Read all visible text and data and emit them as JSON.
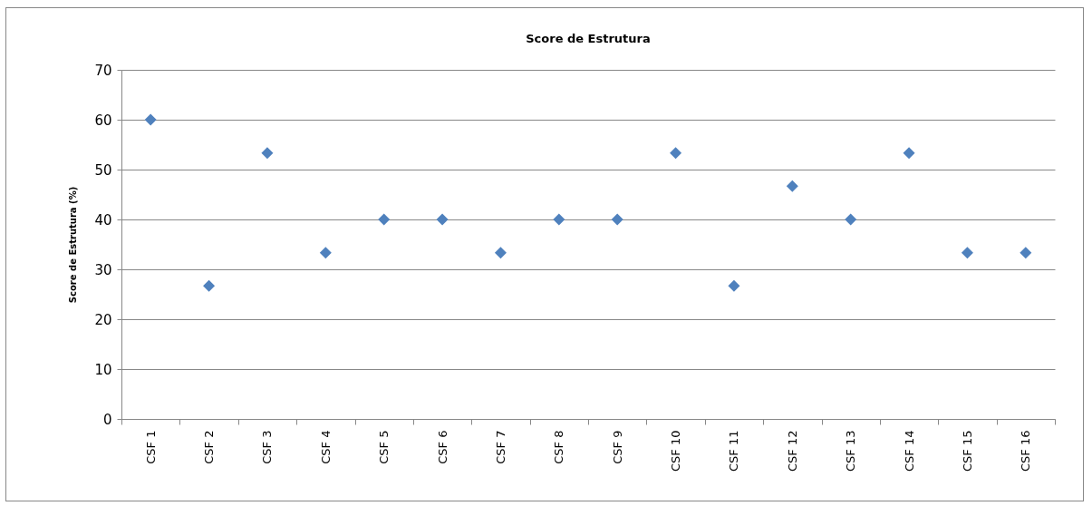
{
  "chart_data": {
    "type": "scatter",
    "title": "Score de Estrutura",
    "ylabel": "Score de Estrutura (%)",
    "categories": [
      "CSF 1",
      "CSF 2",
      "CSF 3",
      "CSF 4",
      "CSF 5",
      "CSF 6",
      "CSF 7",
      "CSF 8",
      "CSF 9",
      "CSF 10",
      "CSF 11",
      "CSF 12",
      "CSF 13",
      "CSF 14",
      "CSF 15",
      "CSF 16"
    ],
    "values": [
      60,
      26.7,
      53.3,
      33.3,
      40,
      40,
      33.3,
      40,
      40,
      53.3,
      26.7,
      46.7,
      40,
      53.3,
      33.3,
      33.3
    ],
    "color": "#4f81bd",
    "marker": "diamond",
    "ylim": [
      0,
      70
    ],
    "yticks": [
      0,
      10,
      20,
      30,
      40,
      50,
      60,
      70
    ],
    "grid": "y"
  }
}
